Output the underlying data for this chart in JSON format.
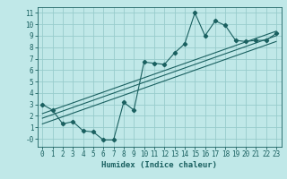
{
  "title": "",
  "xlabel": "Humidex (Indice chaleur)",
  "bg_color": "#c0e8e8",
  "grid_color": "#98cccc",
  "line_color": "#1a6060",
  "xlim": [
    -0.5,
    23.5
  ],
  "ylim": [
    -0.7,
    11.5
  ],
  "xticks": [
    0,
    1,
    2,
    3,
    4,
    5,
    6,
    7,
    8,
    9,
    10,
    11,
    12,
    13,
    14,
    15,
    16,
    17,
    18,
    19,
    20,
    21,
    22,
    23
  ],
  "yticks": [
    0,
    1,
    2,
    3,
    4,
    5,
    6,
    7,
    8,
    9,
    10,
    11
  ],
  "ytick_labels": [
    "-0",
    "1",
    "2",
    "3",
    "4",
    "5",
    "6",
    "7",
    "8",
    "9",
    "10",
    "11"
  ],
  "scatter_x": [
    0,
    1,
    2,
    3,
    4,
    5,
    6,
    7,
    8,
    9,
    10,
    11,
    12,
    13,
    14,
    15,
    16,
    17,
    18,
    19,
    20,
    21,
    22,
    23
  ],
  "scatter_y": [
    3.0,
    2.5,
    1.3,
    1.5,
    0.7,
    0.6,
    -0.1,
    -0.1,
    3.2,
    2.5,
    6.7,
    6.6,
    6.5,
    7.5,
    8.3,
    11.0,
    9.0,
    10.3,
    9.9,
    8.6,
    8.5,
    8.6,
    8.6,
    9.2
  ],
  "reg_lines": [
    {
      "x0": 0,
      "y0": 1.3,
      "x1": 23,
      "y1": 8.5
    },
    {
      "x0": 0,
      "y0": 1.8,
      "x1": 23,
      "y1": 9.0
    },
    {
      "x0": 0,
      "y0": 2.2,
      "x1": 23,
      "y1": 9.4
    }
  ],
  "tick_fontsize": 5.5,
  "xlabel_fontsize": 6.5
}
